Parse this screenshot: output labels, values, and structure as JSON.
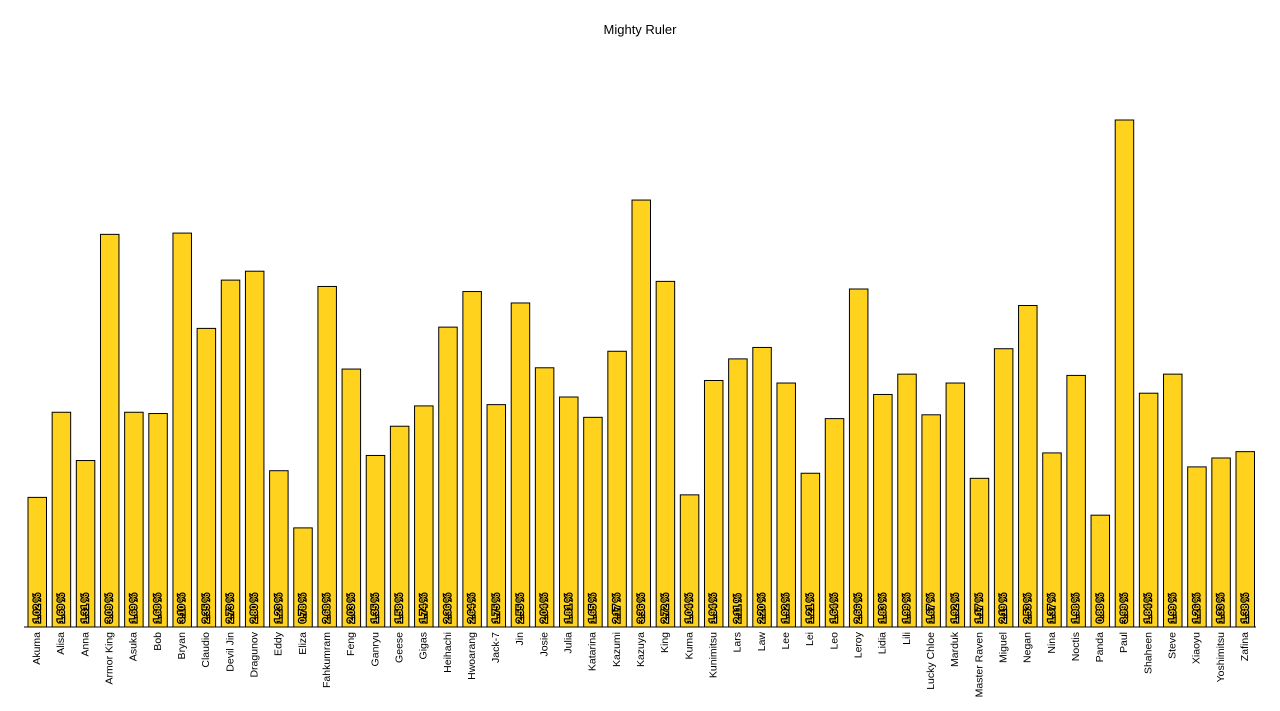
{
  "chart_data": {
    "type": "bar",
    "title": "Mighty Ruler",
    "xlabel": "",
    "ylabel": "",
    "ylim": [
      0,
      4.25
    ],
    "grid": false,
    "legend": "none",
    "bar_color": "#ffd21e",
    "categories": [
      "Akuma",
      "Alisa",
      "Anna",
      "Armor King",
      "Asuka",
      "Bob",
      "Bryan",
      "Claudio",
      "Devil Jin",
      "Dragunov",
      "Eddy",
      "Eliza",
      "Fahkumram",
      "Feng",
      "Ganryu",
      "Geese",
      "Gigas",
      "Heihachi",
      "Hwoarang",
      "Jack-7",
      "Jin",
      "Josie",
      "Julia",
      "Katarina",
      "Kazumi",
      "Kazuya",
      "King",
      "Kuma",
      "Kunimitsu",
      "Lars",
      "Law",
      "Lee",
      "Lei",
      "Leo",
      "Leroy",
      "Lidia",
      "Lili",
      "Lucky Chloe",
      "Marduk",
      "Master Raven",
      "Miguel",
      "Negan",
      "Nina",
      "Noctis",
      "Panda",
      "Paul",
      "Shaheen",
      "Steve",
      "Xiaoyu",
      "Yoshimitsu",
      "Zafina"
    ],
    "values": [
      1.02,
      1.69,
      1.31,
      3.09,
      1.69,
      1.68,
      3.1,
      2.35,
      2.73,
      2.8,
      1.23,
      0.78,
      2.68,
      2.03,
      1.35,
      1.58,
      1.74,
      2.36,
      2.64,
      1.75,
      2.55,
      2.04,
      1.81,
      1.65,
      2.17,
      3.36,
      2.72,
      1.04,
      1.94,
      2.11,
      2.2,
      1.92,
      1.21,
      1.64,
      2.66,
      1.83,
      1.99,
      1.67,
      1.92,
      1.17,
      2.19,
      2.53,
      1.37,
      1.98,
      0.88,
      3.99,
      1.84,
      1.99,
      1.26,
      1.33,
      1.38
    ],
    "labels": [
      "1.02 %",
      "1.69 %",
      "1.31 %",
      "3.09 %",
      "1.69 %",
      "1.68 %",
      "3.10 %",
      "2.35 %",
      "2.73 %",
      "2.80 %",
      "1.23 %",
      "0.78 %",
      "2.68 %",
      "2.03 %",
      "1.35 %",
      "1.58 %",
      "1.74 %",
      "2.36 %",
      "2.64 %",
      "1.75 %",
      "2.55 %",
      "2.04 %",
      "1.81 %",
      "1.65 %",
      "2.17 %",
      "3.36 %",
      "2.72 %",
      "1.04 %",
      "1.94 %",
      "2.11 %",
      "2.20 %",
      "1.92 %",
      "1.21 %",
      "1.64 %",
      "2.66 %",
      "1.83 %",
      "1.99 %",
      "1.67 %",
      "1.92 %",
      "1.17 %",
      "2.19 %",
      "2.53 %",
      "1.37 %",
      "1.98 %",
      "0.88 %",
      "3.99 %",
      "1.84 %",
      "1.99 %",
      "1.26 %",
      "1.33 %",
      "1.38 %"
    ]
  }
}
